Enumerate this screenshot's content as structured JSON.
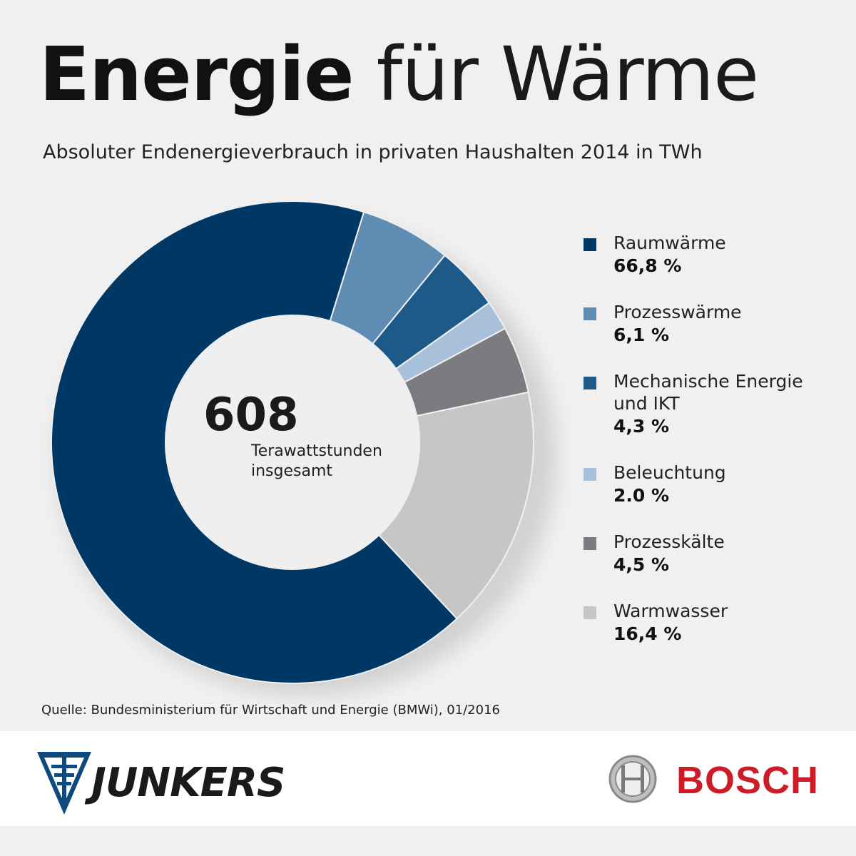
{
  "header": {
    "title_bold": "Energie",
    "title_light": "für Wärme",
    "subtitle": "Absoluter Endenergieverbrauch in privaten Haushalten 2014 in TWh"
  },
  "center": {
    "total": "608",
    "unit_line1": "Terawattstunden",
    "unit_line2": "insgesamt"
  },
  "chart_data": {
    "type": "pie",
    "variant": "donut",
    "title": "Absoluter Endenergieverbrauch in privaten Haushalten 2014 in TWh",
    "total": 608,
    "total_unit": "Terawattstunden",
    "legend_position": "right",
    "slices": [
      {
        "label": "Raumwärme",
        "value": 66.8,
        "display": "66,8 %",
        "color": "#003865"
      },
      {
        "label": "Prozesswärme",
        "value": 6.1,
        "display": "6,1 %",
        "color": "#5f8cb2"
      },
      {
        "label": "Mechanische Energie und IKT",
        "label_line1": "Mechanische Energie",
        "label_line2": "und IKT",
        "value": 4.3,
        "display": "4,3 %",
        "color": "#1d5a8a"
      },
      {
        "label": "Beleuchtung",
        "value": 2.0,
        "display": "2.0 %",
        "color": "#a8c0da"
      },
      {
        "label": "Prozesskälte",
        "value": 4.5,
        "display": "4,5 %",
        "color": "#7a7c80"
      },
      {
        "label": "Warmwasser",
        "value": 16.4,
        "display": "16,4 %",
        "color": "#c6c6c6"
      }
    ]
  },
  "source": "Quelle: Bundesministerium für Wirtschaft und Energie (BMWi), 01/2016",
  "footer": {
    "junkers": "JUNKERS",
    "bosch": "BOSCH"
  }
}
